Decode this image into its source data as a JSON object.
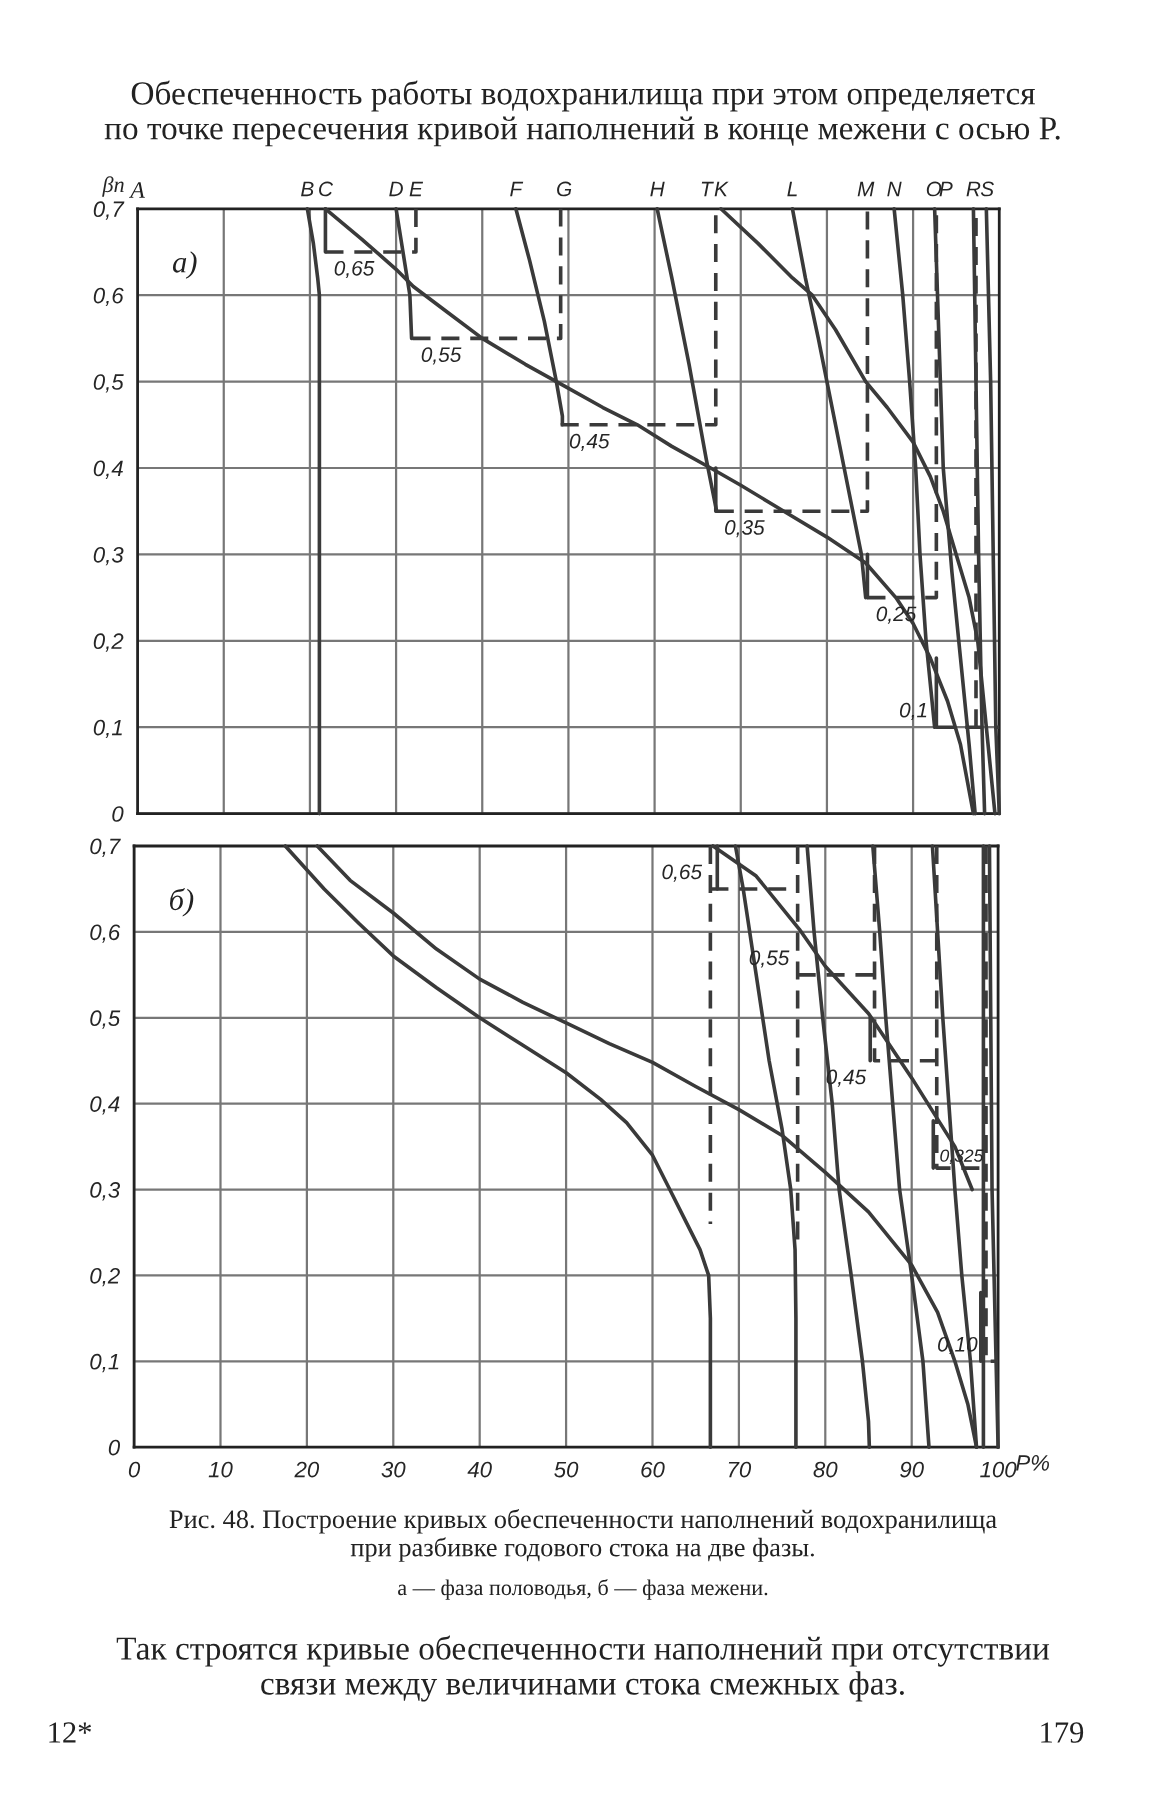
{
  "chart_data": [
    {
      "type": "line",
      "ylabel": "βп",
      "xlim": [
        0,
        100
      ],
      "ylim": [
        0,
        0.7
      ],
      "grid": true,
      "tick_labels": "y",
      "xticks": [
        0,
        10,
        20,
        30,
        40,
        50,
        60,
        70,
        80,
        90,
        100
      ],
      "yticks": [
        0,
        {
          "value": 0.1,
          "label": "0,1"
        },
        {
          "value": 0.2,
          "label": "0,2"
        },
        {
          "value": 0.3,
          "label": "0,3"
        },
        {
          "value": 0.4,
          "label": "0,4"
        },
        {
          "value": 0.5,
          "label": "0,5"
        },
        {
          "value": 0.6,
          "label": "0,6"
        },
        {
          "value": 0.7,
          "label": "0,7"
        }
      ],
      "series": [
        {
          "color": "#3a3a3a",
          "line_style": "solid",
          "x": [
            19.7,
            20.4,
            20.9,
            21.1,
            21.1
          ],
          "values": [
            0.7,
            0.66,
            0.62,
            0.6,
            0
          ]
        },
        {
          "color": "#3a3a3a",
          "line_style": "solid",
          "x": [
            21.8,
            26,
            30,
            32,
            36,
            40,
            45,
            49.5,
            54,
            58,
            62,
            66.5,
            70,
            75,
            80,
            84.5,
            88,
            90,
            92,
            94,
            95.5,
            97
          ],
          "values": [
            0.7,
            0.665,
            0.63,
            0.61,
            0.58,
            0.55,
            0.52,
            0.495,
            0.47,
            0.45,
            0.425,
            0.4,
            0.38,
            0.35,
            0.32,
            0.29,
            0.25,
            0.22,
            0.18,
            0.13,
            0.08,
            0
          ]
        },
        {
          "color": "#3a3a3a",
          "line_style": "solid",
          "x": [
            30,
            30.8,
            31.6,
            31.8
          ],
          "values": [
            0.7,
            0.65,
            0.6,
            0.55
          ]
        },
        {
          "color": "#3a3a3a",
          "line_style": "solid",
          "x": [
            43.9,
            45.5,
            47.2,
            48.6,
            49.3,
            49.3
          ],
          "values": [
            0.7,
            0.64,
            0.57,
            0.5,
            0.46,
            0.45
          ]
        },
        {
          "color": "#3a3a3a",
          "line_style": "solid",
          "x": [
            60.3,
            62,
            64,
            66,
            67.2
          ],
          "values": [
            0.7,
            0.62,
            0.52,
            0.41,
            0.35
          ]
        },
        {
          "color": "#3a3a3a",
          "line_style": "solid",
          "x": [
            67.7,
            72,
            76,
            78.3,
            81,
            84.5,
            87,
            90,
            92,
            93.5,
            95,
            96.5,
            97.5,
            98.5,
            99.5
          ],
          "values": [
            0.7,
            0.66,
            0.62,
            0.6,
            0.56,
            0.5,
            0.47,
            0.43,
            0.39,
            0.35,
            0.3,
            0.25,
            0.2,
            0.1,
            0
          ]
        },
        {
          "color": "#3a3a3a",
          "line_style": "solid",
          "x": [
            76,
            77.5,
            79,
            80,
            82,
            84,
            84.5
          ],
          "values": [
            0.7,
            0.62,
            0.55,
            0.5,
            0.4,
            0.3,
            0.25
          ]
        },
        {
          "color": "#3a3a3a",
          "line_style": "solid",
          "x": [
            87.8,
            88.8,
            89.6,
            90.3,
            90.8,
            91.5,
            92.5
          ],
          "values": [
            0.7,
            0.6,
            0.5,
            0.4,
            0.3,
            0.2,
            0.1
          ]
        },
        {
          "color": "#3a3a3a",
          "line_style": "solid",
          "x": [
            92.5,
            93,
            93.5,
            94.5,
            95.5,
            96.5,
            97.2
          ],
          "values": [
            0.7,
            0.55,
            0.4,
            0.28,
            0.18,
            0.08,
            0
          ]
        },
        {
          "color": "#3a3a3a",
          "line_style": "solid",
          "x": [
            97,
            97.3,
            97.6,
            98,
            98.3
          ],
          "values": [
            0.7,
            0.5,
            0.3,
            0.1,
            0
          ]
        },
        {
          "color": "#3a3a3a",
          "line_style": "solid",
          "x": [
            98.5,
            99,
            99.3,
            99.6,
            100
          ],
          "values": [
            0.7,
            0.5,
            0.3,
            0.1,
            0
          ]
        },
        {
          "color": "#3a3a3a",
          "line_style": "solid",
          "x": [
            21.8,
            21.8,
            null,
            67.1,
            67.1,
            null,
            84.7,
            84.7,
            null,
            92.7,
            92.7
          ],
          "values": [
            0.7,
            0.65,
            null,
            0.4,
            0.35,
            null,
            0.3,
            0.25,
            null,
            0.18,
            0.1
          ]
        },
        {
          "color": "#3a3a3a",
          "line_style": "dashed",
          "x": [
            21.8,
            32.3,
            32.3,
            null,
            31.9,
            49.1,
            49.1,
            null,
            49.1,
            67.1,
            67.1,
            null,
            67.1,
            84.7,
            84.7,
            null,
            84.7,
            92.7,
            92.7,
            null,
            92.7,
            100,
            null,
            97.3,
            97.3
          ],
          "values": [
            0.65,
            0.65,
            0.7,
            null,
            0.55,
            0.55,
            0.7,
            null,
            0.45,
            0.45,
            0.7,
            null,
            0.35,
            0.35,
            0.7,
            null,
            0.25,
            0.25,
            0.7,
            null,
            0.1,
            0.1,
            null,
            0.1,
            0.7
          ]
        }
      ],
      "annotations": [
        "а)",
        "Обеспеченность работы водохранилища при этом определяется\nпо точке пересечения кривой наполнений в конце межени с осью P.",
        "A",
        {
          "text": "B",
          "x": 19.7,
          "y": 0.7
        },
        {
          "text": "C",
          "x": 21.8,
          "y": 0.7
        },
        {
          "text": "D",
          "x": 30,
          "y": 0.7
        },
        {
          "text": "E",
          "x": 32.3,
          "y": 0.7
        },
        {
          "text": "F",
          "x": 43.9,
          "y": 0.7
        },
        {
          "text": "G",
          "x": 49.5,
          "y": 0.7
        },
        {
          "text": "H",
          "x": 60.3,
          "y": 0.7
        },
        {
          "text": "T",
          "x": 66,
          "y": 0.7
        },
        {
          "text": "K",
          "x": 67.7,
          "y": 0.7
        },
        {
          "text": "L",
          "x": 76,
          "y": 0.7
        },
        {
          "text": "M",
          "x": 84.5,
          "y": 0.7
        },
        {
          "text": "N",
          "x": 87.8,
          "y": 0.7
        },
        {
          "text": "O",
          "x": 92.4,
          "y": 0.7
        },
        {
          "text": "P",
          "x": 93.8,
          "y": 0.7
        },
        {
          "text": "R",
          "x": 97,
          "y": 0.7
        },
        {
          "text": "S",
          "x": 98.6,
          "y": 0.7
        },
        {
          "text": "0,65",
          "x": 21.8,
          "y": 0.65
        },
        {
          "text": "0,55",
          "x": 31.9,
          "y": 0.55
        },
        {
          "text": "0,45",
          "x": 49.1,
          "y": 0.45
        },
        {
          "text": "0,35",
          "x": 67.1,
          "y": 0.35
        },
        {
          "text": "0,25",
          "x": 84.7,
          "y": 0.25
        },
        {
          "text": "0,1",
          "x": 92.7,
          "y": 0.1
        }
      ]
    },
    {
      "type": "line",
      "xlabel": "P%",
      "xlim": [
        0,
        100
      ],
      "ylim": [
        0,
        0.7
      ],
      "grid": true,
      "xticks": [
        0,
        10,
        20,
        30,
        40,
        50,
        60,
        70,
        80,
        90,
        100
      ],
      "yticks": [
        0,
        {
          "value": 0.1,
          "label": "0,1"
        },
        {
          "value": 0.2,
          "label": "0,2"
        },
        {
          "value": 0.3,
          "label": "0,3"
        },
        {
          "value": 0.4,
          "label": "0,4"
        },
        {
          "value": 0.5,
          "label": "0,5"
        },
        {
          "value": 0.6,
          "label": "0,6"
        },
        {
          "value": 0.7,
          "label": "0,7"
        }
      ],
      "series": [
        {
          "color": "#3a3a3a",
          "line_style": "solid",
          "x": [
            17.5,
            22,
            26,
            30,
            35,
            40,
            45,
            50,
            54,
            57,
            60,
            62,
            64,
            65.5,
            66.5,
            66.7,
            66.7
          ],
          "values": [
            0.7,
            0.65,
            0.61,
            0.572,
            0.535,
            0.5,
            0.468,
            0.436,
            0.405,
            0.378,
            0.34,
            0.3,
            0.26,
            0.23,
            0.2,
            0.15,
            0
          ]
        },
        {
          "color": "#3a3a3a",
          "line_style": "solid",
          "x": [
            21.2,
            25,
            30,
            35,
            40,
            45,
            50,
            55,
            60,
            65,
            70,
            75,
            80,
            85,
            90,
            93,
            95,
            96.5,
            97.5
          ],
          "values": [
            0.7,
            0.66,
            0.622,
            0.58,
            0.545,
            0.518,
            0.494,
            0.47,
            0.448,
            0.42,
            0.393,
            0.363,
            0.32,
            0.274,
            0.212,
            0.157,
            0.1,
            0.05,
            0
          ]
        },
        {
          "color": "#3a3a3a",
          "line_style": "solid",
          "x": [
            67,
            72,
            77,
            80,
            85,
            90,
            93,
            95,
            97
          ],
          "values": [
            0.7,
            0.665,
            0.603,
            0.56,
            0.505,
            0.43,
            0.382,
            0.35,
            0.3
          ]
        },
        {
          "color": "#3a3a3a",
          "line_style": "solid",
          "x": [
            69.6,
            70.5,
            72,
            73.5,
            75,
            76,
            76.5,
            76.6,
            76.6
          ],
          "values": [
            0.7,
            0.65,
            0.55,
            0.45,
            0.37,
            0.3,
            0.23,
            0.15,
            0
          ]
        },
        {
          "color": "#3a3a3a",
          "line_style": "solid",
          "x": [
            77.9,
            78.7,
            79.7,
            80.8,
            81.6,
            83,
            84.3,
            85,
            85.1
          ],
          "values": [
            0.7,
            0.6,
            0.5,
            0.4,
            0.3,
            0.2,
            0.1,
            0.03,
            0
          ]
        },
        {
          "color": "#3a3a3a",
          "line_style": "solid",
          "x": [
            85.5,
            86.3,
            87,
            87.8,
            88.6,
            90,
            91.3,
            92
          ],
          "values": [
            0.7,
            0.6,
            0.5,
            0.4,
            0.3,
            0.2,
            0.1,
            0
          ]
        },
        {
          "color": "#3a3a3a",
          "line_style": "solid",
          "x": [
            92.4,
            93,
            93.6,
            94.3,
            95,
            95.8,
            96.8,
            97.5
          ],
          "values": [
            0.7,
            0.6,
            0.5,
            0.4,
            0.3,
            0.2,
            0.1,
            0
          ]
        },
        {
          "color": "#3a3a3a",
          "line_style": "solid",
          "x": [
            98.3,
            98.3
          ],
          "values": [
            0.7,
            0
          ]
        },
        {
          "color": "#3a3a3a",
          "line_style": "solid",
          "x": [
            99,
            99.3,
            100
          ],
          "values": [
            0.7,
            0.3,
            0
          ]
        },
        {
          "color": "#3a3a3a",
          "line_style": "solid",
          "x": [
            67.5,
            67.5,
            null,
            85.2,
            85.2,
            null,
            92.5,
            92.5,
            null,
            98,
            98
          ],
          "values": [
            0.7,
            0.65,
            null,
            0.5,
            0.45,
            null,
            0.38,
            0.325,
            null,
            0.18,
            0.1
          ]
        },
        {
          "color": "#3a3a3a",
          "line_style": "dashed",
          "x": [
            66.7,
            66.7,
            null,
            66.7,
            76.8,
            null,
            76.8,
            76.8,
            null,
            76.8,
            85.7,
            null,
            85.7,
            85.7,
            92.9,
            null,
            92.9,
            92.9,
            98.6,
            null,
            98.6,
            98.6,
            100
          ],
          "values": [
            0.7,
            0.26,
            null,
            0.65,
            0.65,
            null,
            0.7,
            0.23,
            null,
            0.55,
            0.55,
            null,
            0.7,
            0.45,
            0.45,
            null,
            0.7,
            0.325,
            0.325,
            null,
            0.7,
            0.1,
            0.1
          ]
        }
      ],
      "annotations": [
        "б)",
        "Рис. 48. Построение кривых обеспеченности наполнений водохранилища\nпри разбивке годового стока на две фазы.",
        "а — фаза половодья, б — фаза межени.",
        "Так строятся кривые обеспеченности наполнений при отсутствии\nсвязи между величинами стока смежных фаз.",
        "12*",
        "179",
        {
          "text": "0,65",
          "x": 66.7,
          "y": 0.65
        },
        {
          "text": "0,55",
          "x": 76.8,
          "y": 0.55
        },
        {
          "text": "0,45",
          "x": 85.7,
          "y": 0.45
        },
        {
          "text": "0,325",
          "x": 92.9,
          "y": 0.325
        },
        {
          "text": "0,10",
          "x": 98.6,
          "y": 0.1
        }
      ]
    }
  ]
}
